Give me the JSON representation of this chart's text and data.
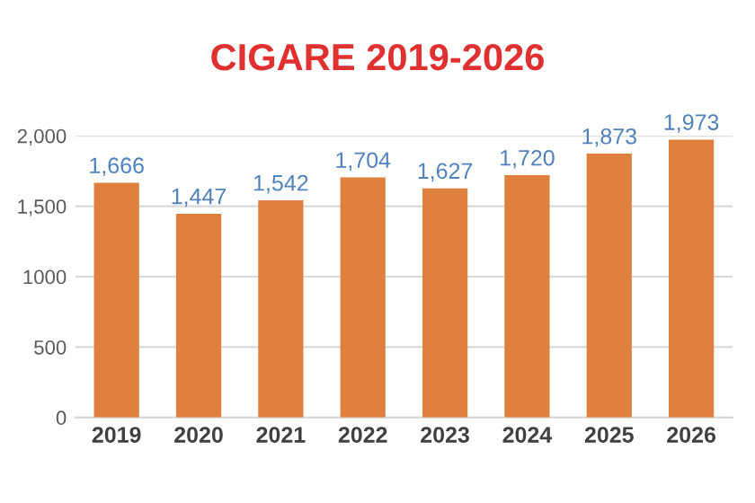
{
  "chart_data": {
    "type": "bar",
    "title": "CIGARE 2019-2026",
    "categories": [
      "2019",
      "2020",
      "2021",
      "2022",
      "2023",
      "2024",
      "2025",
      "2026"
    ],
    "values": [
      1666,
      1447,
      1542,
      1704,
      1627,
      1720,
      1873,
      1973
    ],
    "value_labels": [
      "1,666",
      "1,447",
      "1,542",
      "1,704",
      "1,627",
      "1,720",
      "1,873",
      "1,973"
    ],
    "color": "#e0803e",
    "ylim": [
      0,
      2000
    ],
    "yticks": [
      0,
      500,
      1000,
      {
        "value": 1500,
        "label": "1,500"
      },
      {
        "value": 2000,
        "label": "2,000"
      }
    ],
    "grid": "y"
  }
}
